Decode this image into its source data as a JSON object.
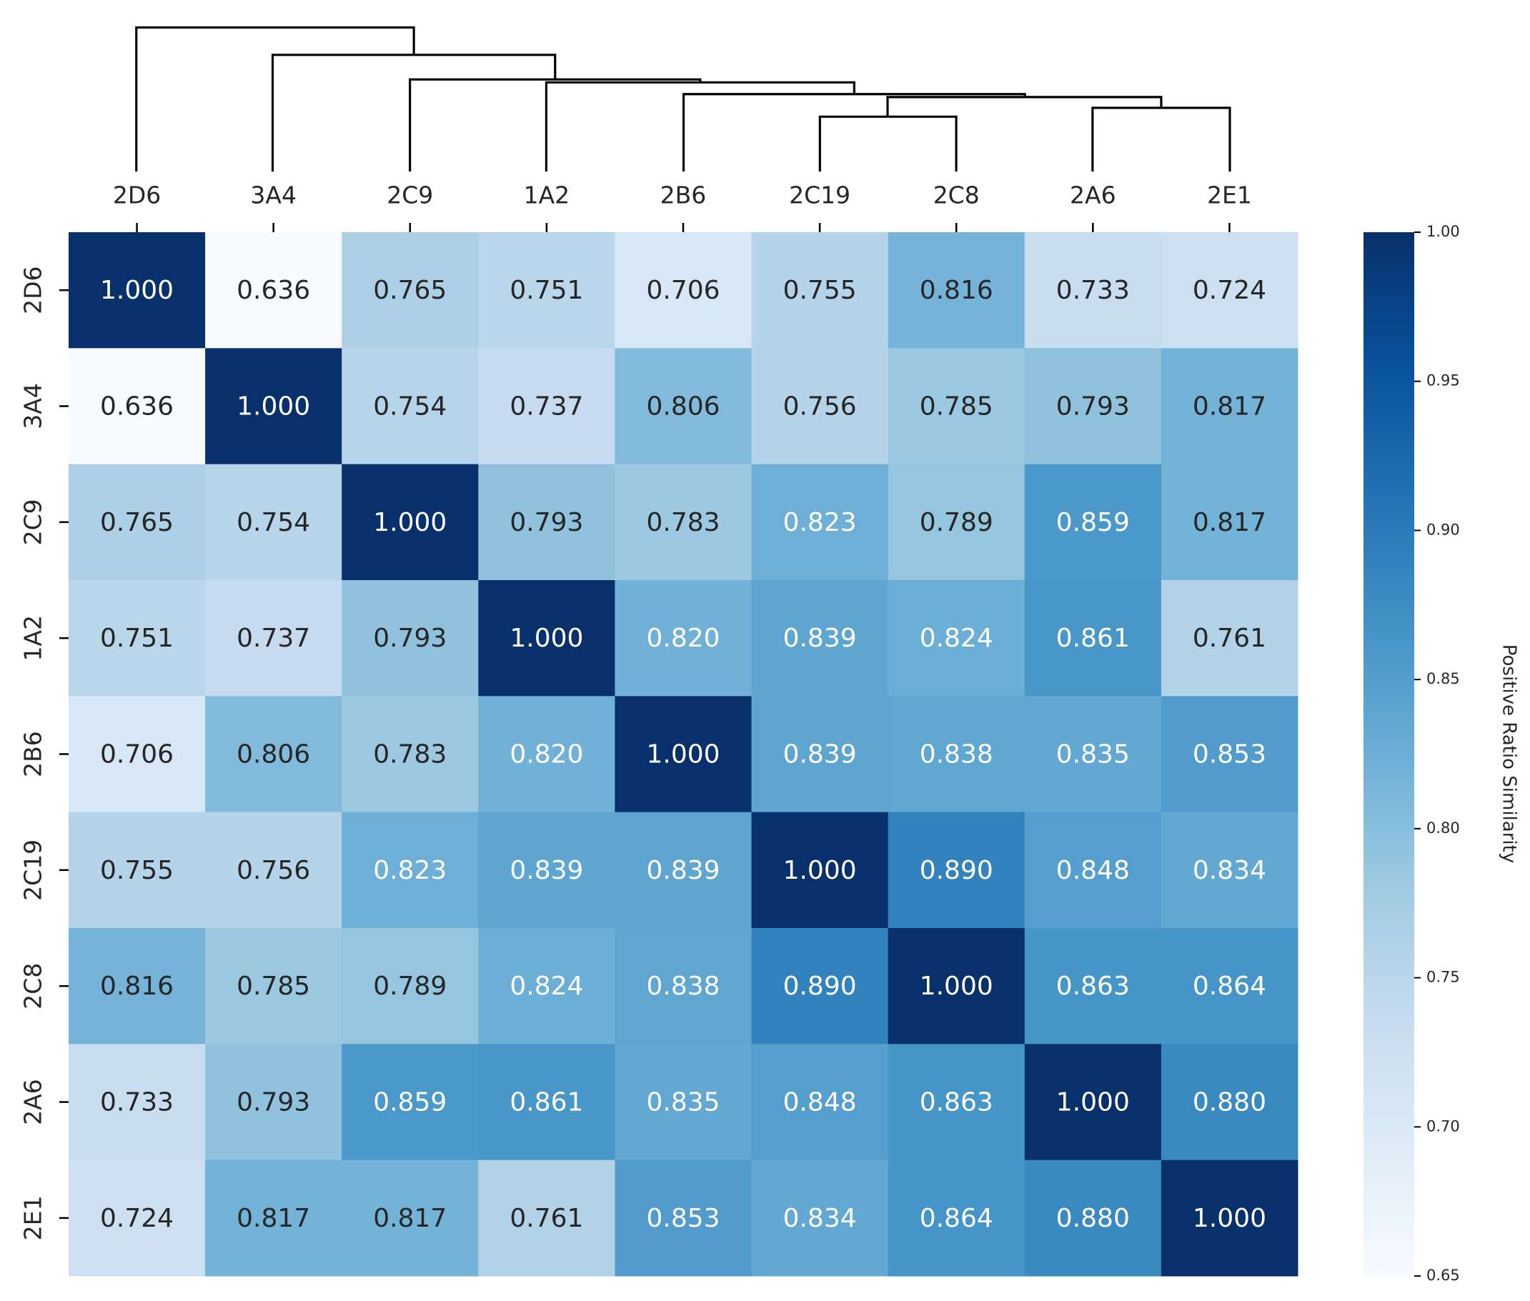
{
  "chart_data": {
    "type": "heatmap",
    "x_categories": [
      "2D6",
      "3A4",
      "2C9",
      "1A2",
      "2B6",
      "2C19",
      "2C8",
      "2A6",
      "2E1"
    ],
    "y_categories": [
      "2D6",
      "3A4",
      "2C9",
      "1A2",
      "2B6",
      "2C19",
      "2C8",
      "2A6",
      "2E1"
    ],
    "values": [
      [
        1.0,
        0.636,
        0.765,
        0.751,
        0.706,
        0.755,
        0.816,
        0.733,
        0.724
      ],
      [
        0.636,
        1.0,
        0.754,
        0.737,
        0.806,
        0.756,
        0.785,
        0.793,
        0.817
      ],
      [
        0.765,
        0.754,
        1.0,
        0.793,
        0.783,
        0.823,
        0.789,
        0.859,
        0.817
      ],
      [
        0.751,
        0.737,
        0.793,
        1.0,
        0.82,
        0.839,
        0.824,
        0.861,
        0.761
      ],
      [
        0.706,
        0.806,
        0.783,
        0.82,
        1.0,
        0.839,
        0.838,
        0.835,
        0.853
      ],
      [
        0.755,
        0.756,
        0.823,
        0.839,
        0.839,
        1.0,
        0.89,
        0.848,
        0.834
      ],
      [
        0.816,
        0.785,
        0.789,
        0.824,
        0.838,
        0.89,
        1.0,
        0.863,
        0.864
      ],
      [
        0.733,
        0.793,
        0.859,
        0.861,
        0.835,
        0.848,
        0.863,
        1.0,
        0.88
      ],
      [
        0.724,
        0.817,
        0.817,
        0.761,
        0.853,
        0.834,
        0.864,
        0.88,
        1.0
      ]
    ],
    "value_labels": [
      [
        "1.000",
        "0.636",
        "0.765",
        "0.751",
        "0.706",
        "0.755",
        "0.816",
        "0.733",
        "0.724"
      ],
      [
        "0.636",
        "1.000",
        "0.754",
        "0.737",
        "0.806",
        "0.756",
        "0.785",
        "0.793",
        "0.817"
      ],
      [
        "0.765",
        "0.754",
        "1.000",
        "0.793",
        "0.783",
        "0.823",
        "0.789",
        "0.859",
        "0.817"
      ],
      [
        "0.751",
        "0.737",
        "0.793",
        "1.000",
        "0.820",
        "0.839",
        "0.824",
        "0.861",
        "0.761"
      ],
      [
        "0.706",
        "0.806",
        "0.783",
        "0.820",
        "1.000",
        "0.839",
        "0.838",
        "0.835",
        "0.853"
      ],
      [
        "0.755",
        "0.756",
        "0.823",
        "0.839",
        "0.839",
        "1.000",
        "0.890",
        "0.848",
        "0.834"
      ],
      [
        "0.816",
        "0.785",
        "0.789",
        "0.824",
        "0.838",
        "0.890",
        "1.000",
        "0.863",
        "0.864"
      ],
      [
        "0.733",
        "0.793",
        "0.859",
        "0.861",
        "0.835",
        "0.848",
        "0.863",
        "1.000",
        "0.880"
      ],
      [
        "0.724",
        "0.817",
        "0.817",
        "0.761",
        "0.853",
        "0.834",
        "0.864",
        "0.880",
        "1.000"
      ]
    ],
    "colorbar": {
      "label": "Positive Ratio Similarity",
      "lim": [
        0.65,
        1.0
      ],
      "ticks": [
        0.65,
        {
          "value": 0.7,
          "label": "0.70"
        },
        0.75,
        {
          "value": 0.8,
          "label": "0.80"
        },
        0.85,
        {
          "value": 0.9,
          "label": "0.90"
        },
        0.95,
        {
          "value": 1.0,
          "label": "1.00"
        }
      ],
      "colormap": [
        "#f7fbff",
        "#deebf7",
        "#c6dbef",
        "#9ecae1",
        "#6baed6",
        "#4292c6",
        "#2171b5",
        "#08519c",
        "#08306b"
      ]
    }
  }
}
